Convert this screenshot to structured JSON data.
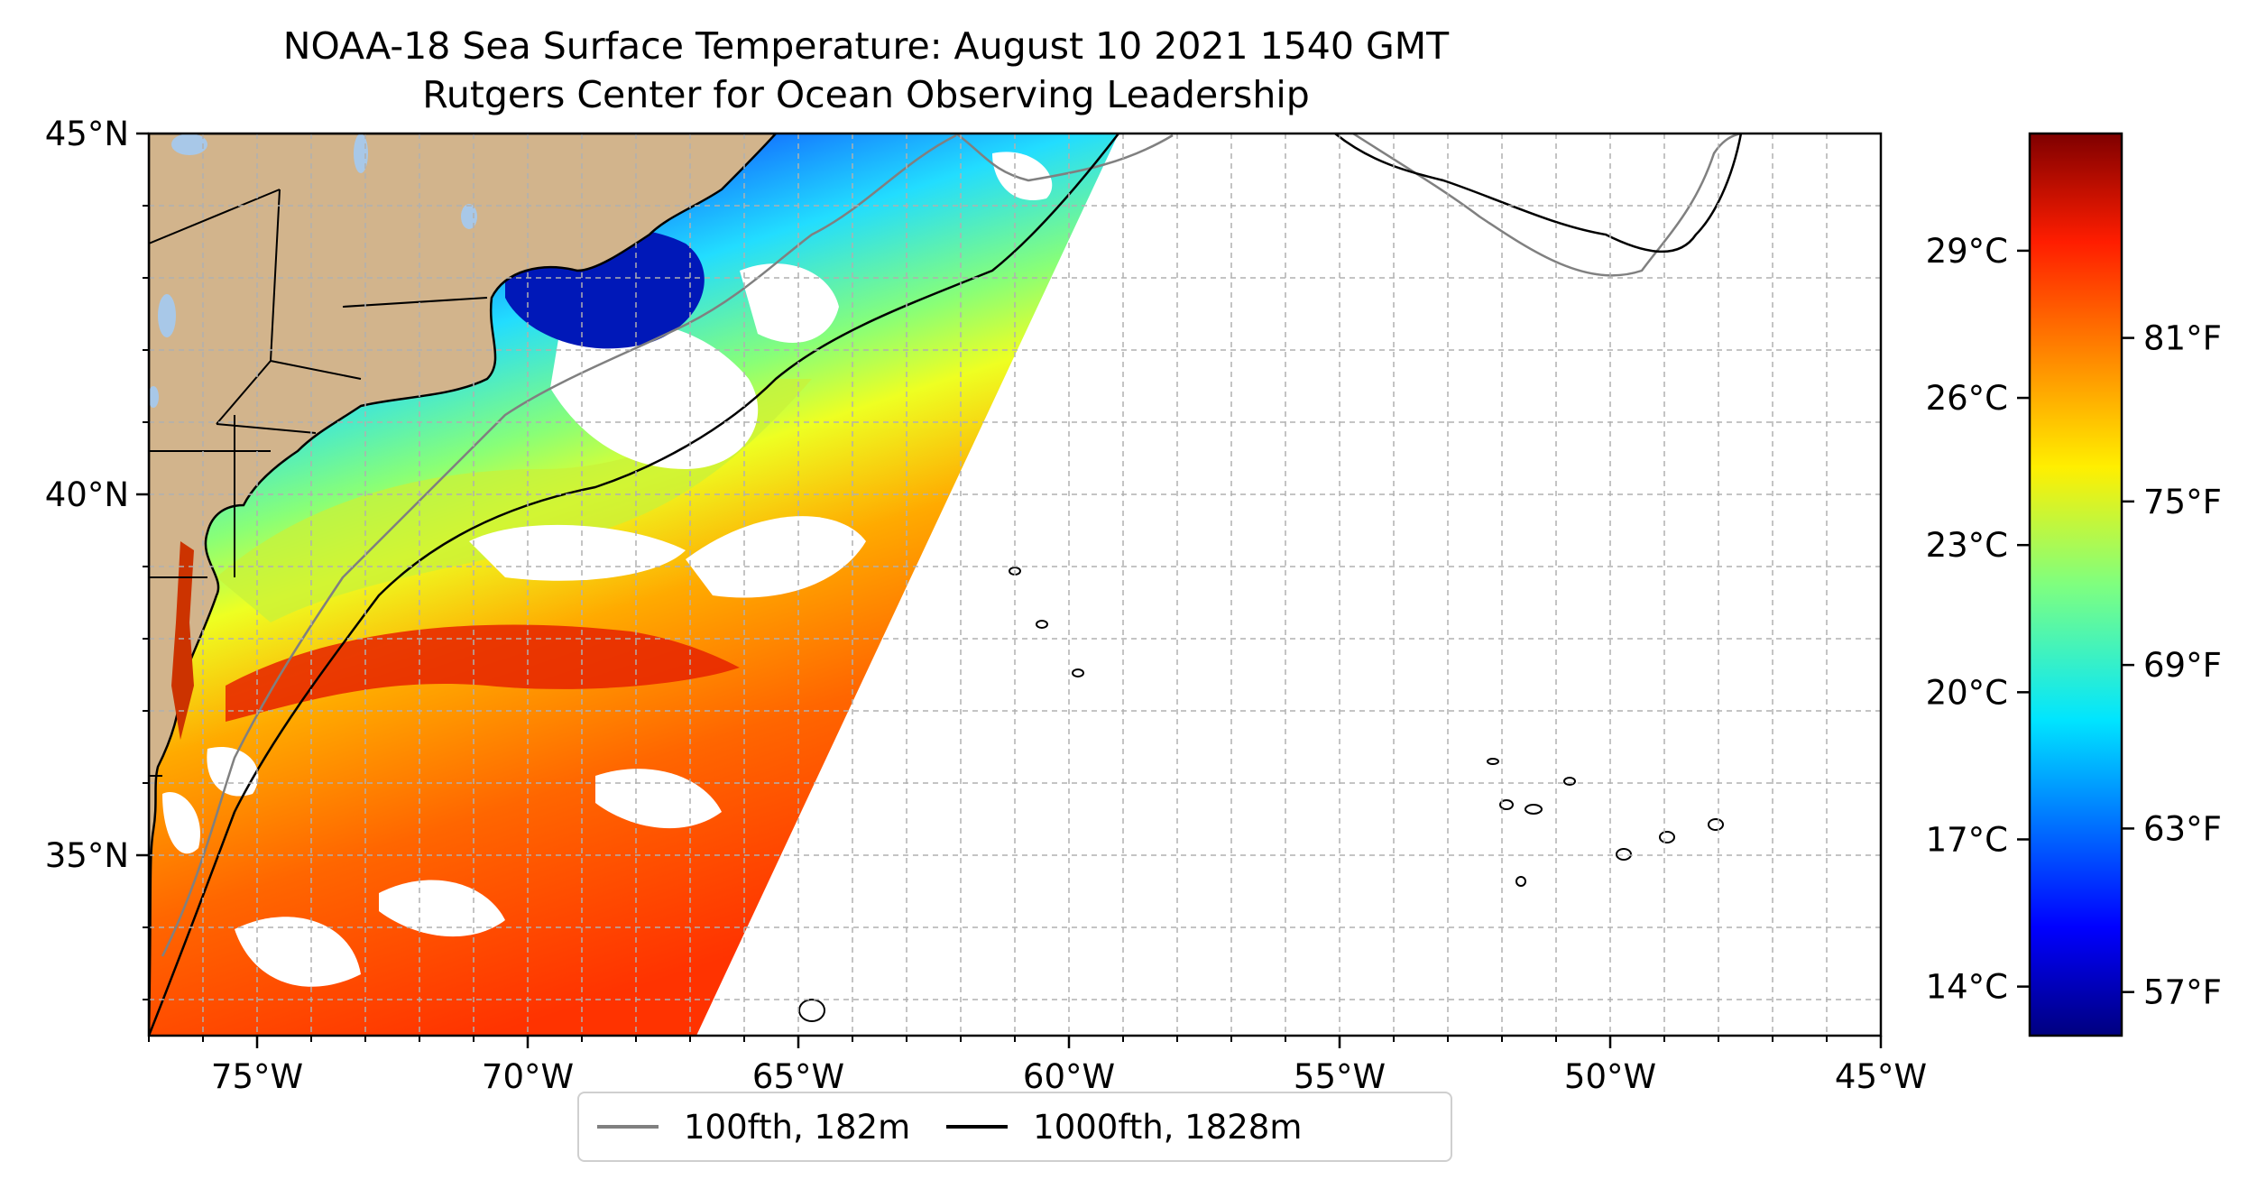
{
  "title": {
    "line1": "NOAA-18 Sea Surface Temperature: August 10 2021 1540 GMT",
    "line2": "Rutgers Center for Ocean Observing Leadership"
  },
  "map": {
    "extent": {
      "lon": [
        -77,
        -45
      ],
      "lat": [
        32.5,
        45
      ]
    },
    "land_color": "#d2b48c",
    "lake_color": "#a8c8e8",
    "grid": true,
    "lon_ticks": [
      {
        "value": -75,
        "label": "75°W"
      },
      {
        "value": -70,
        "label": "70°W"
      },
      {
        "value": -65,
        "label": "65°W"
      },
      {
        "value": -60,
        "label": "60°W"
      },
      {
        "value": -55,
        "label": "55°W"
      },
      {
        "value": -50,
        "label": "50°W"
      },
      {
        "value": -45,
        "label": "45°W"
      }
    ],
    "lat_ticks": [
      {
        "value": 35,
        "label": "35°N"
      },
      {
        "value": 40,
        "label": "40°N"
      },
      {
        "value": 45,
        "label": "45°N"
      }
    ]
  },
  "colorbar": {
    "colormap": "jet",
    "range_f": [
      55.4,
      88.5
    ],
    "fahrenheit_ticks": [
      {
        "value": 57,
        "label": "57°F"
      },
      {
        "value": 63,
        "label": "63°F"
      },
      {
        "value": 69,
        "label": "69°F"
      },
      {
        "value": 75,
        "label": "75°F"
      },
      {
        "value": 81,
        "label": "81°F"
      }
    ],
    "celsius_ticks": [
      {
        "value": 14,
        "label": "14°C"
      },
      {
        "value": 17,
        "label": "17°C"
      },
      {
        "value": 20,
        "label": "20°C"
      },
      {
        "value": 23,
        "label": "23°C"
      },
      {
        "value": 26,
        "label": "26°C"
      },
      {
        "value": 29,
        "label": "29°C"
      }
    ]
  },
  "legend": {
    "placement": "bottom-center",
    "items": [
      {
        "label": "100fth, 182m",
        "color": "#808080"
      },
      {
        "label": "1000fth, 1828m",
        "color": "#000000"
      }
    ]
  }
}
